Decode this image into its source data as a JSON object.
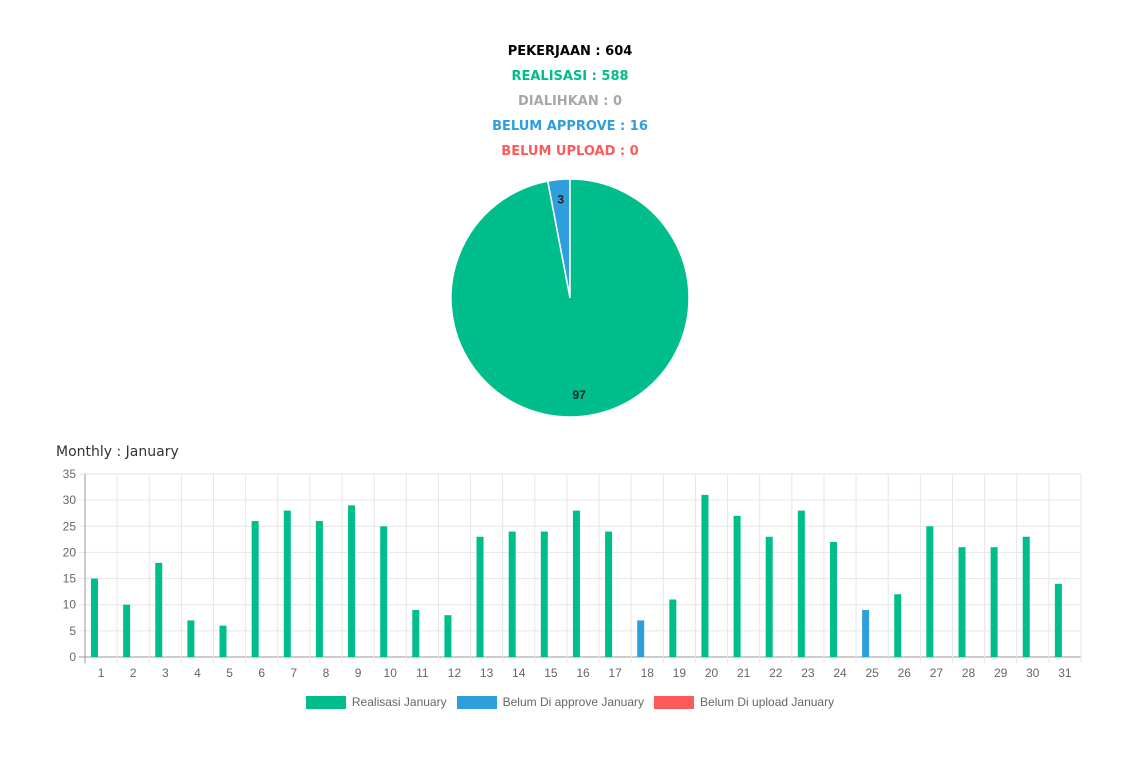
{
  "summary": {
    "pekerjaan": "PEKERJAAN : 604",
    "realisasi": "REALISASI : 588",
    "dialihkan": "DIALIHKAN : 0",
    "belum_approve": "BELUM APPROVE : 16",
    "belum_upload": "BELUM UPLOAD : 0"
  },
  "colors": {
    "black": "#000000",
    "green": "#00be8b",
    "gray": "#a8a8a8",
    "blue": "#2e9fdc",
    "red": "#ff5a5a"
  },
  "monthly_title": "Monthly : January",
  "chart_data": [
    {
      "type": "pie",
      "values": [
        97,
        3
      ],
      "labels": [
        "97",
        "3"
      ],
      "colors": [
        "#00be8b",
        "#2e9fdc"
      ]
    },
    {
      "type": "bar",
      "categories": [
        "1",
        "2",
        "3",
        "4",
        "5",
        "6",
        "7",
        "8",
        "9",
        "10",
        "11",
        "12",
        "13",
        "14",
        "15",
        "16",
        "17",
        "18",
        "19",
        "20",
        "21",
        "22",
        "23",
        "24",
        "25",
        "26",
        "27",
        "28",
        "29",
        "30",
        "31"
      ],
      "series": [
        {
          "name": "Realisasi January",
          "color": "#00be8b",
          "values": [
            15,
            10,
            18,
            7,
            6,
            26,
            28,
            26,
            29,
            25,
            9,
            8,
            23,
            24,
            24,
            28,
            24,
            0,
            11,
            31,
            27,
            23,
            28,
            22,
            0,
            12,
            25,
            21,
            21,
            23,
            14
          ]
        },
        {
          "name": "Belum Di approve January",
          "color": "#2e9fdc",
          "values": [
            0,
            0,
            0,
            0,
            0,
            0,
            0,
            0,
            0,
            0,
            0,
            0,
            0,
            0,
            0,
            0,
            0,
            7,
            0,
            0,
            0,
            0,
            0,
            0,
            9,
            0,
            0,
            0,
            0,
            0,
            0
          ]
        },
        {
          "name": "Belum Di upload January",
          "color": "#ff5a5a",
          "values": [
            0,
            0,
            0,
            0,
            0,
            0,
            0,
            0,
            0,
            0,
            0,
            0,
            0,
            0,
            0,
            0,
            0,
            0,
            0,
            0,
            0,
            0,
            0,
            0,
            0,
            0,
            0,
            0,
            0,
            0,
            0
          ]
        }
      ],
      "yticks": [
        "0",
        "5",
        "10",
        "15",
        "20",
        "25",
        "30",
        "35"
      ],
      "ylim": [
        0,
        35
      ],
      "grid": true,
      "legend": "bottom"
    }
  ]
}
